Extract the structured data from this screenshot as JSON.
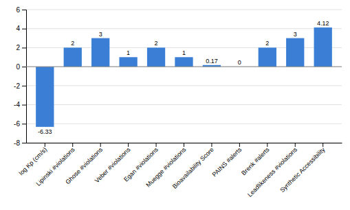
{
  "chart_data": {
    "type": "bar",
    "categories": [
      "log Kp (cm/s)",
      "Lipinski #violations",
      "Ghose #violations",
      "Veber #violations",
      "Egan #violations",
      "Muegge #violations",
      "Bioavailability Score",
      "PAINS #alerts",
      "Brenk #alerts",
      "Leadlikeness #violations",
      "Synthetic Accessibility"
    ],
    "values": [
      -6.33,
      2,
      3,
      1,
      2,
      1,
      0.17,
      0,
      2,
      3,
      4.12
    ],
    "color": "#3A7FD5",
    "ylim": [
      -8,
      6
    ],
    "yticks": [
      -8,
      -6,
      -4,
      -2,
      0,
      2,
      4,
      6
    ],
    "grid": true,
    "data_labels": true
  }
}
